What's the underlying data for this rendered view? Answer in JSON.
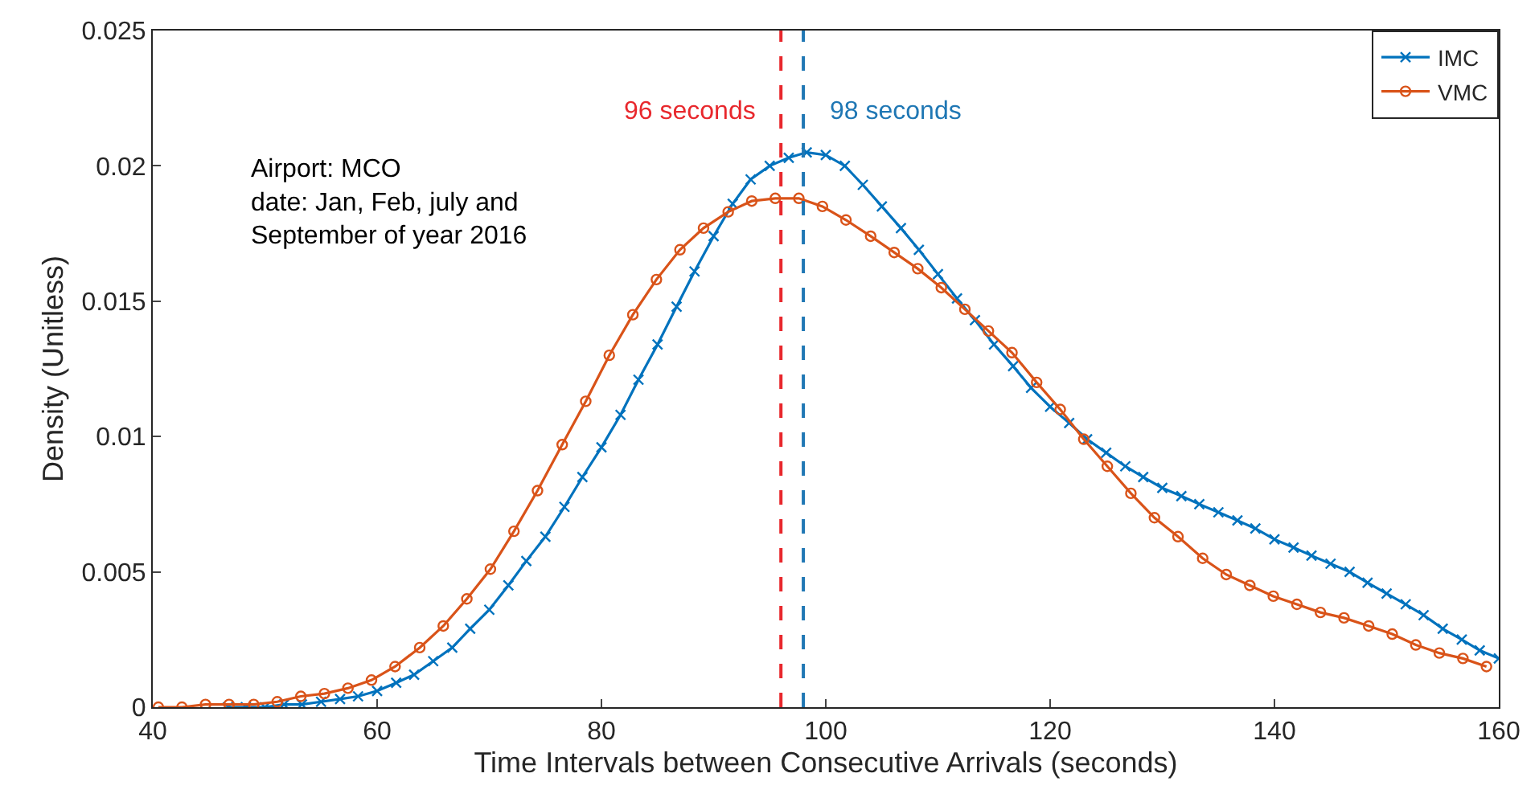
{
  "chart_data": {
    "type": "line",
    "xlabel": "Time Intervals between Consecutive Arrivals (seconds)",
    "ylabel": "Density (Unitless)",
    "xlim": [
      40,
      160
    ],
    "xticks": [
      40,
      60,
      80,
      100,
      120,
      140,
      160
    ],
    "ylim": [
      0,
      0.025
    ],
    "yticks": [
      0,
      0.005,
      0.01,
      0.015,
      0.02,
      0.025
    ],
    "legend": "top right",
    "line_style": "solid",
    "series": [
      {
        "name": "IMC",
        "color": "#0072bd",
        "marker": "cross",
        "x": [
          46.7,
          48.3,
          50.0,
          51.7,
          53.3,
          55.0,
          56.7,
          58.3,
          60.0,
          61.7,
          63.3,
          65.0,
          66.7,
          68.3,
          70.0,
          71.7,
          73.3,
          75.0,
          76.7,
          78.3,
          80.0,
          81.7,
          83.3,
          85.0,
          86.7,
          88.3,
          90.0,
          91.7,
          93.3,
          95.0,
          96.7,
          98.3,
          100.0,
          101.7,
          103.3,
          105.0,
          106.7,
          108.3,
          110.0,
          111.7,
          113.3,
          115.0,
          116.7,
          118.3,
          120.0,
          121.7,
          123.3,
          125.0,
          126.7,
          128.3,
          130.0,
          131.7,
          133.3,
          135.0,
          136.7,
          138.3,
          140.0,
          141.7,
          143.3,
          145.0,
          146.7,
          148.3,
          150.0,
          151.7,
          153.3,
          155.0,
          156.7,
          158.3,
          160.0
        ],
        "values": [
          0,
          0,
          0,
          0.0001,
          0.0001,
          0.0002,
          0.0003,
          0.0004,
          0.0006,
          0.0009,
          0.0012,
          0.0017,
          0.0022,
          0.0029,
          0.0036,
          0.0045,
          0.0054,
          0.0063,
          0.0074,
          0.0085,
          0.0096,
          0.0108,
          0.0121,
          0.0134,
          0.0148,
          0.0161,
          0.0174,
          0.0186,
          0.0195,
          0.02,
          0.0203,
          0.0205,
          0.0204,
          0.02,
          0.0193,
          0.0185,
          0.0177,
          0.0169,
          0.016,
          0.0151,
          0.0143,
          0.0134,
          0.0126,
          0.0118,
          0.0111,
          0.0105,
          0.0099,
          0.0094,
          0.0089,
          0.0085,
          0.0081,
          0.0078,
          0.0075,
          0.0072,
          0.0069,
          0.0066,
          0.0062,
          0.0059,
          0.0056,
          0.0053,
          0.005,
          0.0046,
          0.0042,
          0.0038,
          0.0034,
          0.0029,
          0.0025,
          0.0021,
          0.0018
        ]
      },
      {
        "name": "VMC",
        "color": "#d95319",
        "marker": "circle",
        "x": [
          40.5,
          42.6,
          44.7,
          46.8,
          49.0,
          51.1,
          53.2,
          55.3,
          57.4,
          59.5,
          61.6,
          63.8,
          65.9,
          68.0,
          70.1,
          72.2,
          74.3,
          76.5,
          78.6,
          80.7,
          82.8,
          84.9,
          87.0,
          89.1,
          91.3,
          93.4,
          95.5,
          97.6,
          99.7,
          101.8,
          104.0,
          106.1,
          108.2,
          110.3,
          112.4,
          114.5,
          116.6,
          118.8,
          120.9,
          123.0,
          125.1,
          127.2,
          129.3,
          131.4,
          133.6,
          135.7,
          137.8,
          139.9,
          142.0,
          144.1,
          146.2,
          148.4,
          150.5,
          152.6,
          154.7,
          156.8,
          158.9
        ],
        "values": [
          0,
          0,
          0.0001,
          0.0001,
          0.0001,
          0.0002,
          0.0004,
          0.0005,
          0.0007,
          0.001,
          0.0015,
          0.0022,
          0.003,
          0.004,
          0.0051,
          0.0065,
          0.008,
          0.0097,
          0.0113,
          0.013,
          0.0145,
          0.0158,
          0.0169,
          0.0177,
          0.0183,
          0.0187,
          0.0188,
          0.0188,
          0.0185,
          0.018,
          0.0174,
          0.0168,
          0.0162,
          0.0155,
          0.0147,
          0.0139,
          0.0131,
          0.012,
          0.011,
          0.0099,
          0.0089,
          0.0079,
          0.007,
          0.0063,
          0.0055,
          0.0049,
          0.0045,
          0.0041,
          0.0038,
          0.0035,
          0.0033,
          0.003,
          0.0027,
          0.0023,
          0.002,
          0.0018,
          0.0015
        ]
      }
    ],
    "ref_lines": [
      {
        "axis": "x",
        "value": 96,
        "label": "96 seconds",
        "color": "#e8282d",
        "line_style": "dashed"
      },
      {
        "axis": "x",
        "value": 98,
        "label": "98 seconds",
        "color": "#1f77b4",
        "line_style": "dashed"
      }
    ],
    "annotations": [
      "Airport: MCO\ndate: Jan, Feb, july and\nSeptember of year 2016"
    ]
  }
}
